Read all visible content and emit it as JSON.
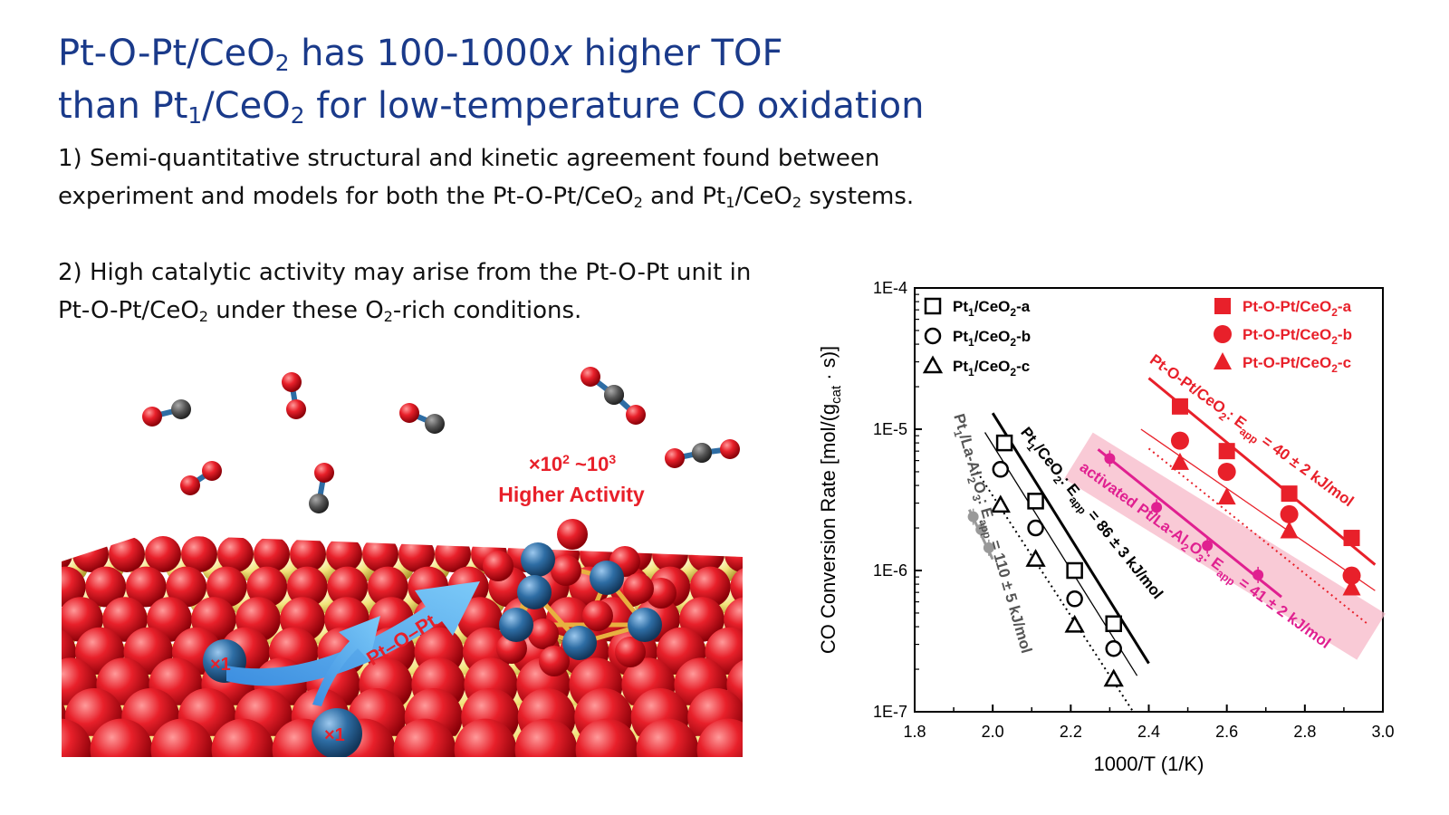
{
  "title": {
    "line1_a": "Pt-O-Pt/CeO",
    "line1_sub": "2",
    "line1_b": " has 100-1000",
    "line1_x": "x",
    "line1_c": " higher TOF",
    "line2_a": "than Pt",
    "line2_sub1": "1",
    "line2_b": "/CeO",
    "line2_sub2": "2",
    "line2_c": " for low-temperature CO oxidation"
  },
  "points": {
    "p1_a": "1) Semi-quantitative structural and kinetic agreement found between",
    "p1_b": "experiment and models for both the Pt-O-Pt/CeO",
    "p1_sub1": "2",
    "p1_c": " and Pt",
    "p1_sub2": "1",
    "p1_d": "/CeO",
    "p1_sub3": "2",
    "p1_e": " systems.",
    "p2_a": "2) High catalytic activity may arise from the Pt-O-Pt unit in",
    "p2_b": "Pt-O-Pt/CeO",
    "p2_sub1": "2",
    "p2_c": " under these O",
    "p2_sub2": "2",
    "p2_d": "-rich conditions."
  },
  "illustration": {
    "activity_pre": "×10",
    "activity_sup1": "2",
    "activity_mid": " ~10",
    "activity_sup2": "3",
    "activity_label": "Higher Activity",
    "arrow_label": "Pt–O–Pt",
    "single_site_label_1": "×1",
    "single_site_label_2": "×1",
    "colors": {
      "oxygen": "#e8202a",
      "cerium": "#f2e27a",
      "platinum": "#2e6da4",
      "carbon": "#555555",
      "arrow": "#5ab0f0",
      "bond": "#e8b040"
    }
  },
  "chart_data": {
    "type": "scatter",
    "xlabel": "1000/T (1/K)",
    "ylabel_pre": "CO Conversion Rate [mol/(g",
    "ylabel_sub": "cat",
    "ylabel_post": " · s)]",
    "xlim": [
      1.8,
      3.0
    ],
    "ylim": [
      1e-07,
      0.0001
    ],
    "yscale": "log",
    "x_ticks": [
      1.8,
      2.0,
      2.2,
      2.4,
      2.6,
      2.8,
      3.0
    ],
    "x_tick_labels": [
      "1.8",
      "2.0",
      "2.2",
      "2.4",
      "2.6",
      "2.8",
      "3.0"
    ],
    "y_ticks": [
      1e-07,
      1e-06,
      1e-05,
      0.0001
    ],
    "y_tick_labels": [
      "1E-7",
      "1E-6",
      "1E-5",
      "1E-4"
    ],
    "legend_left": [
      {
        "pre": "Pt",
        "sub": "1",
        "mid": "/CeO",
        "sub2": "2",
        "post": "-a",
        "marker": "square-open"
      },
      {
        "pre": "Pt",
        "sub": "1",
        "mid": "/CeO",
        "sub2": "2",
        "post": "-b",
        "marker": "circle-open"
      },
      {
        "pre": "Pt",
        "sub": "1",
        "mid": "/CeO",
        "sub2": "2",
        "post": "-c",
        "marker": "triangle-open"
      }
    ],
    "legend_right": [
      {
        "pre": "Pt-O-Pt/CeO",
        "sub": "2",
        "post": "-a",
        "marker": "square"
      },
      {
        "pre": "Pt-O-Pt/CeO",
        "sub": "2",
        "post": "-b",
        "marker": "circle"
      },
      {
        "pre": "Pt-O-Pt/CeO",
        "sub": "2",
        "post": "-c",
        "marker": "triangle"
      }
    ],
    "series": [
      {
        "name": "Pt1/CeO2-a",
        "color": "#000000",
        "marker": "square-open",
        "x": [
          2.03,
          2.11,
          2.21,
          2.31
        ],
        "y": [
          8e-06,
          3.1e-06,
          1e-06,
          4.2e-07
        ]
      },
      {
        "name": "Pt1/CeO2-b",
        "color": "#000000",
        "marker": "circle-open",
        "x": [
          2.02,
          2.11,
          2.21,
          2.31
        ],
        "y": [
          5.2e-06,
          2e-06,
          6.3e-07,
          2.8e-07
        ]
      },
      {
        "name": "Pt1/CeO2-c",
        "color": "#000000",
        "marker": "triangle-open",
        "x": [
          2.02,
          2.11,
          2.21,
          2.31
        ],
        "y": [
          2.9e-06,
          1.2e-06,
          4.1e-07,
          1.7e-07
        ]
      },
      {
        "name": "Pt-O-Pt/CeO2-a",
        "color": "#e8202a",
        "marker": "square",
        "x": [
          2.48,
          2.6,
          2.76,
          2.92
        ],
        "y": [
          1.45e-05,
          7e-06,
          3.5e-06,
          1.7e-06
        ]
      },
      {
        "name": "Pt-O-Pt/CeO2-b",
        "color": "#e8202a",
        "marker": "circle",
        "x": [
          2.48,
          2.6,
          2.76,
          2.92
        ],
        "y": [
          8.3e-06,
          5e-06,
          2.5e-06,
          9.2e-07
        ]
      },
      {
        "name": "Pt-O-Pt/CeO2-c",
        "color": "#e8202a",
        "marker": "triangle",
        "x": [
          2.48,
          2.6,
          2.76,
          2.92
        ],
        "y": [
          5.8e-06,
          3.3e-06,
          1.9e-06,
          7.5e-07
        ]
      },
      {
        "name": "",
        "color": "#e02090",
        "marker": "dot-err",
        "x": [
          2.3,
          2.42,
          2.55,
          2.68
        ],
        "y": [
          6.2e-06,
          2.8e-06,
          1.5e-06,
          9.3e-07
        ]
      },
      {
        "name": "",
        "color": "#999999",
        "marker": "dot-err",
        "x": [
          1.95,
          1.97,
          1.99
        ],
        "y": [
          2.4e-06,
          1.95e-06,
          1.45e-06
        ]
      }
    ],
    "fit_lines": [
      {
        "color": "#000000",
        "width": 3,
        "dash": "",
        "x1": 2.0,
        "y1": 1.3e-05,
        "x2": 2.4,
        "y2": 2.2e-07
      },
      {
        "color": "#000000",
        "width": 1.3,
        "dash": "",
        "x1": 1.98,
        "y1": 9.5e-06,
        "x2": 2.37,
        "y2": 1.8e-07
      },
      {
        "color": "#000000",
        "width": 2,
        "dash": "2,4",
        "x1": 1.96,
        "y1": 5e-06,
        "x2": 2.36,
        "y2": 1e-07
      },
      {
        "color": "#e8202a",
        "width": 3,
        "dash": "",
        "x1": 2.4,
        "y1": 2.3e-05,
        "x2": 2.98,
        "y2": 1.1e-06
      },
      {
        "color": "#e8202a",
        "width": 1.3,
        "dash": "",
        "x1": 2.38,
        "y1": 1e-05,
        "x2": 2.98,
        "y2": 7.2e-07
      },
      {
        "color": "#e8202a",
        "width": 2,
        "dash": "2,4",
        "x1": 2.4,
        "y1": 7.3e-06,
        "x2": 2.96,
        "y2": 4.2e-07
      },
      {
        "color": "#e02090",
        "width": 3,
        "dash": "",
        "x1": 2.27,
        "y1": 7.2e-06,
        "x2": 2.74,
        "y2": 6.5e-07
      },
      {
        "color": "#999999",
        "width": 3,
        "dash": "",
        "x1": 1.94,
        "y1": 2.7e-06,
        "x2": 2.0,
        "y2": 1.2e-06
      }
    ],
    "annotations": {
      "pt1_pre": "Pt",
      "pt1_sub": "1",
      "pt1_mid": "/CeO",
      "pt1_sub2": "2",
      "pt1_post": ": E",
      "pt1_sub3": "app",
      "pt1_value": " = 86 ± 3 kJ/mol",
      "ptopt_pre": "Pt-O-Pt/CeO",
      "ptopt_sub": "2",
      "ptopt_post": ": E",
      "ptopt_sub2": "app",
      "ptopt_value": " = 40 ± 2 kJ/mol",
      "act_pre": "activated Pt/La-Al",
      "act_sub": "2",
      "act_mid": "O",
      "act_sub2": "3",
      "act_post": ": E",
      "act_sub3": "app",
      "act_value": " = 41 ± 2 kJ/mol",
      "la_pre": "Pt",
      "la_sub": "1",
      "la_mid": "/La-Al",
      "la_sub2": "2",
      "la_mid2": "O",
      "la_sub3": "3",
      "la_post": ": E",
      "la_sub4": "app",
      "la_value": " = 110 ± 5 kJ/mol"
    }
  }
}
